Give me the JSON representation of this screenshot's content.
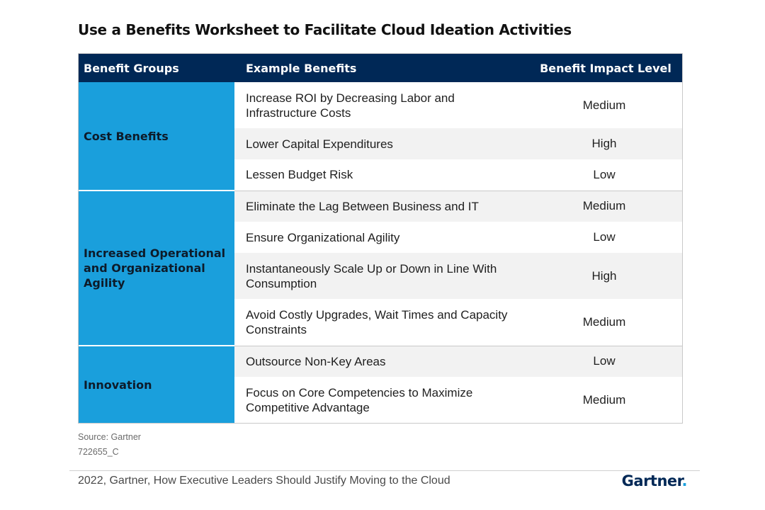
{
  "title": "Use a Benefits Worksheet to Facilitate Cloud Ideation Activities",
  "table": {
    "headers": [
      "Benefit Groups",
      "Example Benefits",
      "Benefit Impact Level"
    ],
    "groups": [
      {
        "name": "Cost Benefits",
        "rows": [
          {
            "benefit": "Increase ROI by Decreasing Labor and Infrastructure Costs",
            "level": "Medium"
          },
          {
            "benefit": "Lower Capital Expenditures",
            "level": "High"
          },
          {
            "benefit": "Lessen Budget Risk",
            "level": "Low"
          }
        ]
      },
      {
        "name": "Increased Operational and Organizational Agility",
        "rows": [
          {
            "benefit": "Eliminate the Lag Between Business and IT",
            "level": "Medium"
          },
          {
            "benefit": "Ensure Organizational Agility",
            "level": "Low"
          },
          {
            "benefit": "Instantaneously Scale Up or Down in Line With Consumption",
            "level": "High"
          },
          {
            "benefit": "Avoid Costly Upgrades, Wait Times and Capacity Constraints",
            "level": "Medium"
          }
        ]
      },
      {
        "name": "Innovation",
        "rows": [
          {
            "benefit": "Outsource Non-Key Areas",
            "level": "Low"
          },
          {
            "benefit": "Focus on Core Competencies to Maximize Competitive Advantage",
            "level": "Medium"
          }
        ]
      }
    ]
  },
  "source": "Source: Gartner",
  "doc_code": "722655_C",
  "citation": "2022, Gartner, How Executive Leaders Should Justify Moving to the Cloud",
  "logo": {
    "text": "Gartner",
    "dot": "."
  },
  "colors": {
    "header_bg": "#002856",
    "group_bg": "#1a9fdc",
    "row_shade": "#f2f2f2"
  }
}
